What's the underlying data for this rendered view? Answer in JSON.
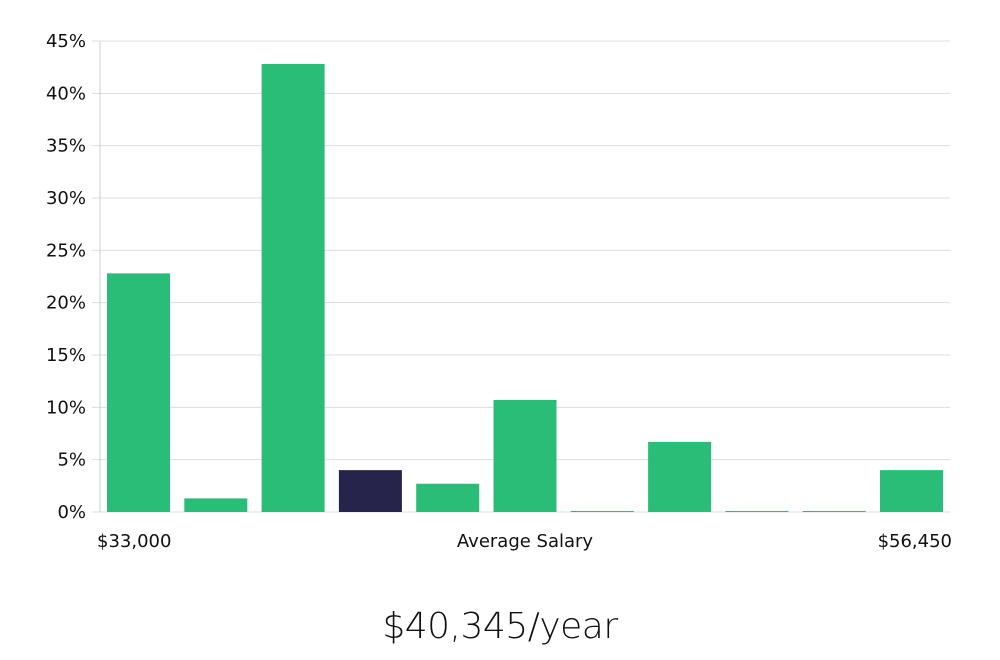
{
  "chart_data": {
    "type": "bar",
    "title": "",
    "xlabel": "Average Salary",
    "ylabel": "",
    "range_start_label": "$33,000",
    "range_end_label": "$56,450",
    "y_ticks": [
      "0%",
      "5%",
      "10%",
      "15%",
      "20%",
      "25%",
      "30%",
      "35%",
      "40%",
      "45%"
    ],
    "ylim": [
      0,
      45
    ],
    "grid": true,
    "values": [
      22.8,
      1.3,
      42.8,
      4.0,
      2.7,
      10.7,
      0.1,
      6.7,
      0.1,
      0.1,
      4.0
    ],
    "highlight_index": 3,
    "colors": {
      "bar": "#29bd77",
      "highlight": "#27244b",
      "grid": "#dddddd",
      "axis": "#cccccc"
    }
  },
  "summary": {
    "salary_text": "$40,345/year"
  }
}
